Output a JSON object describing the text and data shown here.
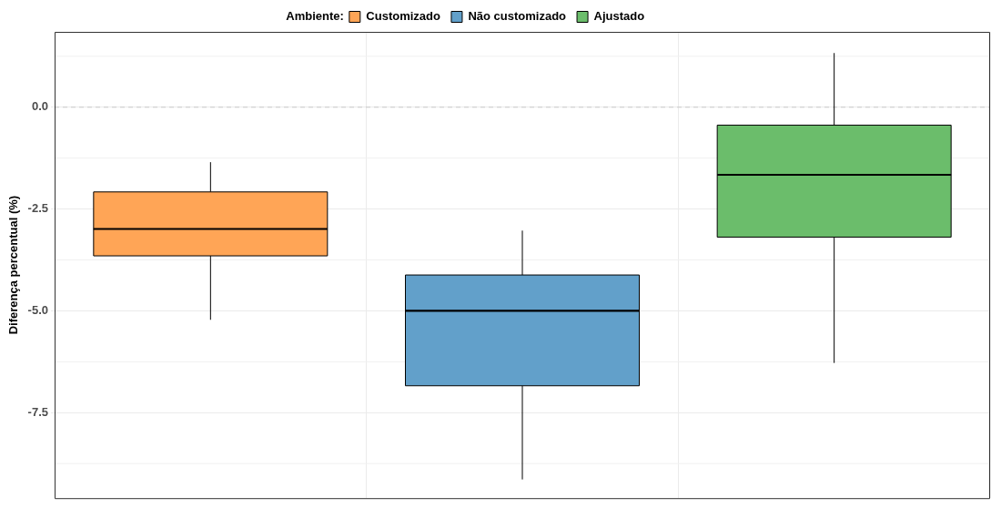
{
  "chart_data": {
    "type": "box",
    "ylabel": "Diferença percentual (%)",
    "legend_title": "Ambiente:",
    "legend": "top",
    "categories": [
      null,
      null,
      null
    ],
    "series": [
      {
        "name": "Customizado",
        "color": "#ffa556",
        "boxes": [
          {
            "low": -5.22,
            "q1": -3.65,
            "median": -2.99,
            "q3": -2.08,
            "high": -1.35
          },
          null,
          null
        ]
      },
      {
        "name": "Não customizado",
        "color": "#62a0ca",
        "boxes": [
          null,
          {
            "low": -9.14,
            "q1": -6.84,
            "median": -5.0,
            "q3": -4.12,
            "high": -3.03
          },
          null
        ]
      },
      {
        "name": "Ajustado",
        "color": "#6bbd6b",
        "boxes": [
          null,
          null,
          {
            "low": -6.28,
            "q1": -3.19,
            "median": -1.66,
            "q3": -0.44,
            "high": 1.33
          }
        ]
      }
    ],
    "ylim": [
      -9.6,
      1.85
    ],
    "yticks": [
      {
        "value": 0,
        "label": "0.0"
      },
      {
        "value": -2.5,
        "label": "-2.5"
      },
      {
        "value": -5,
        "label": "-5.0"
      },
      {
        "value": -7.5,
        "label": "-7.5"
      }
    ],
    "grid": true,
    "tick_labels": "y",
    "ref_lines": [
      {
        "axis": "y",
        "value": 0,
        "label": null,
        "color": "#c8c8c8",
        "line_style": "dashed"
      }
    ]
  }
}
